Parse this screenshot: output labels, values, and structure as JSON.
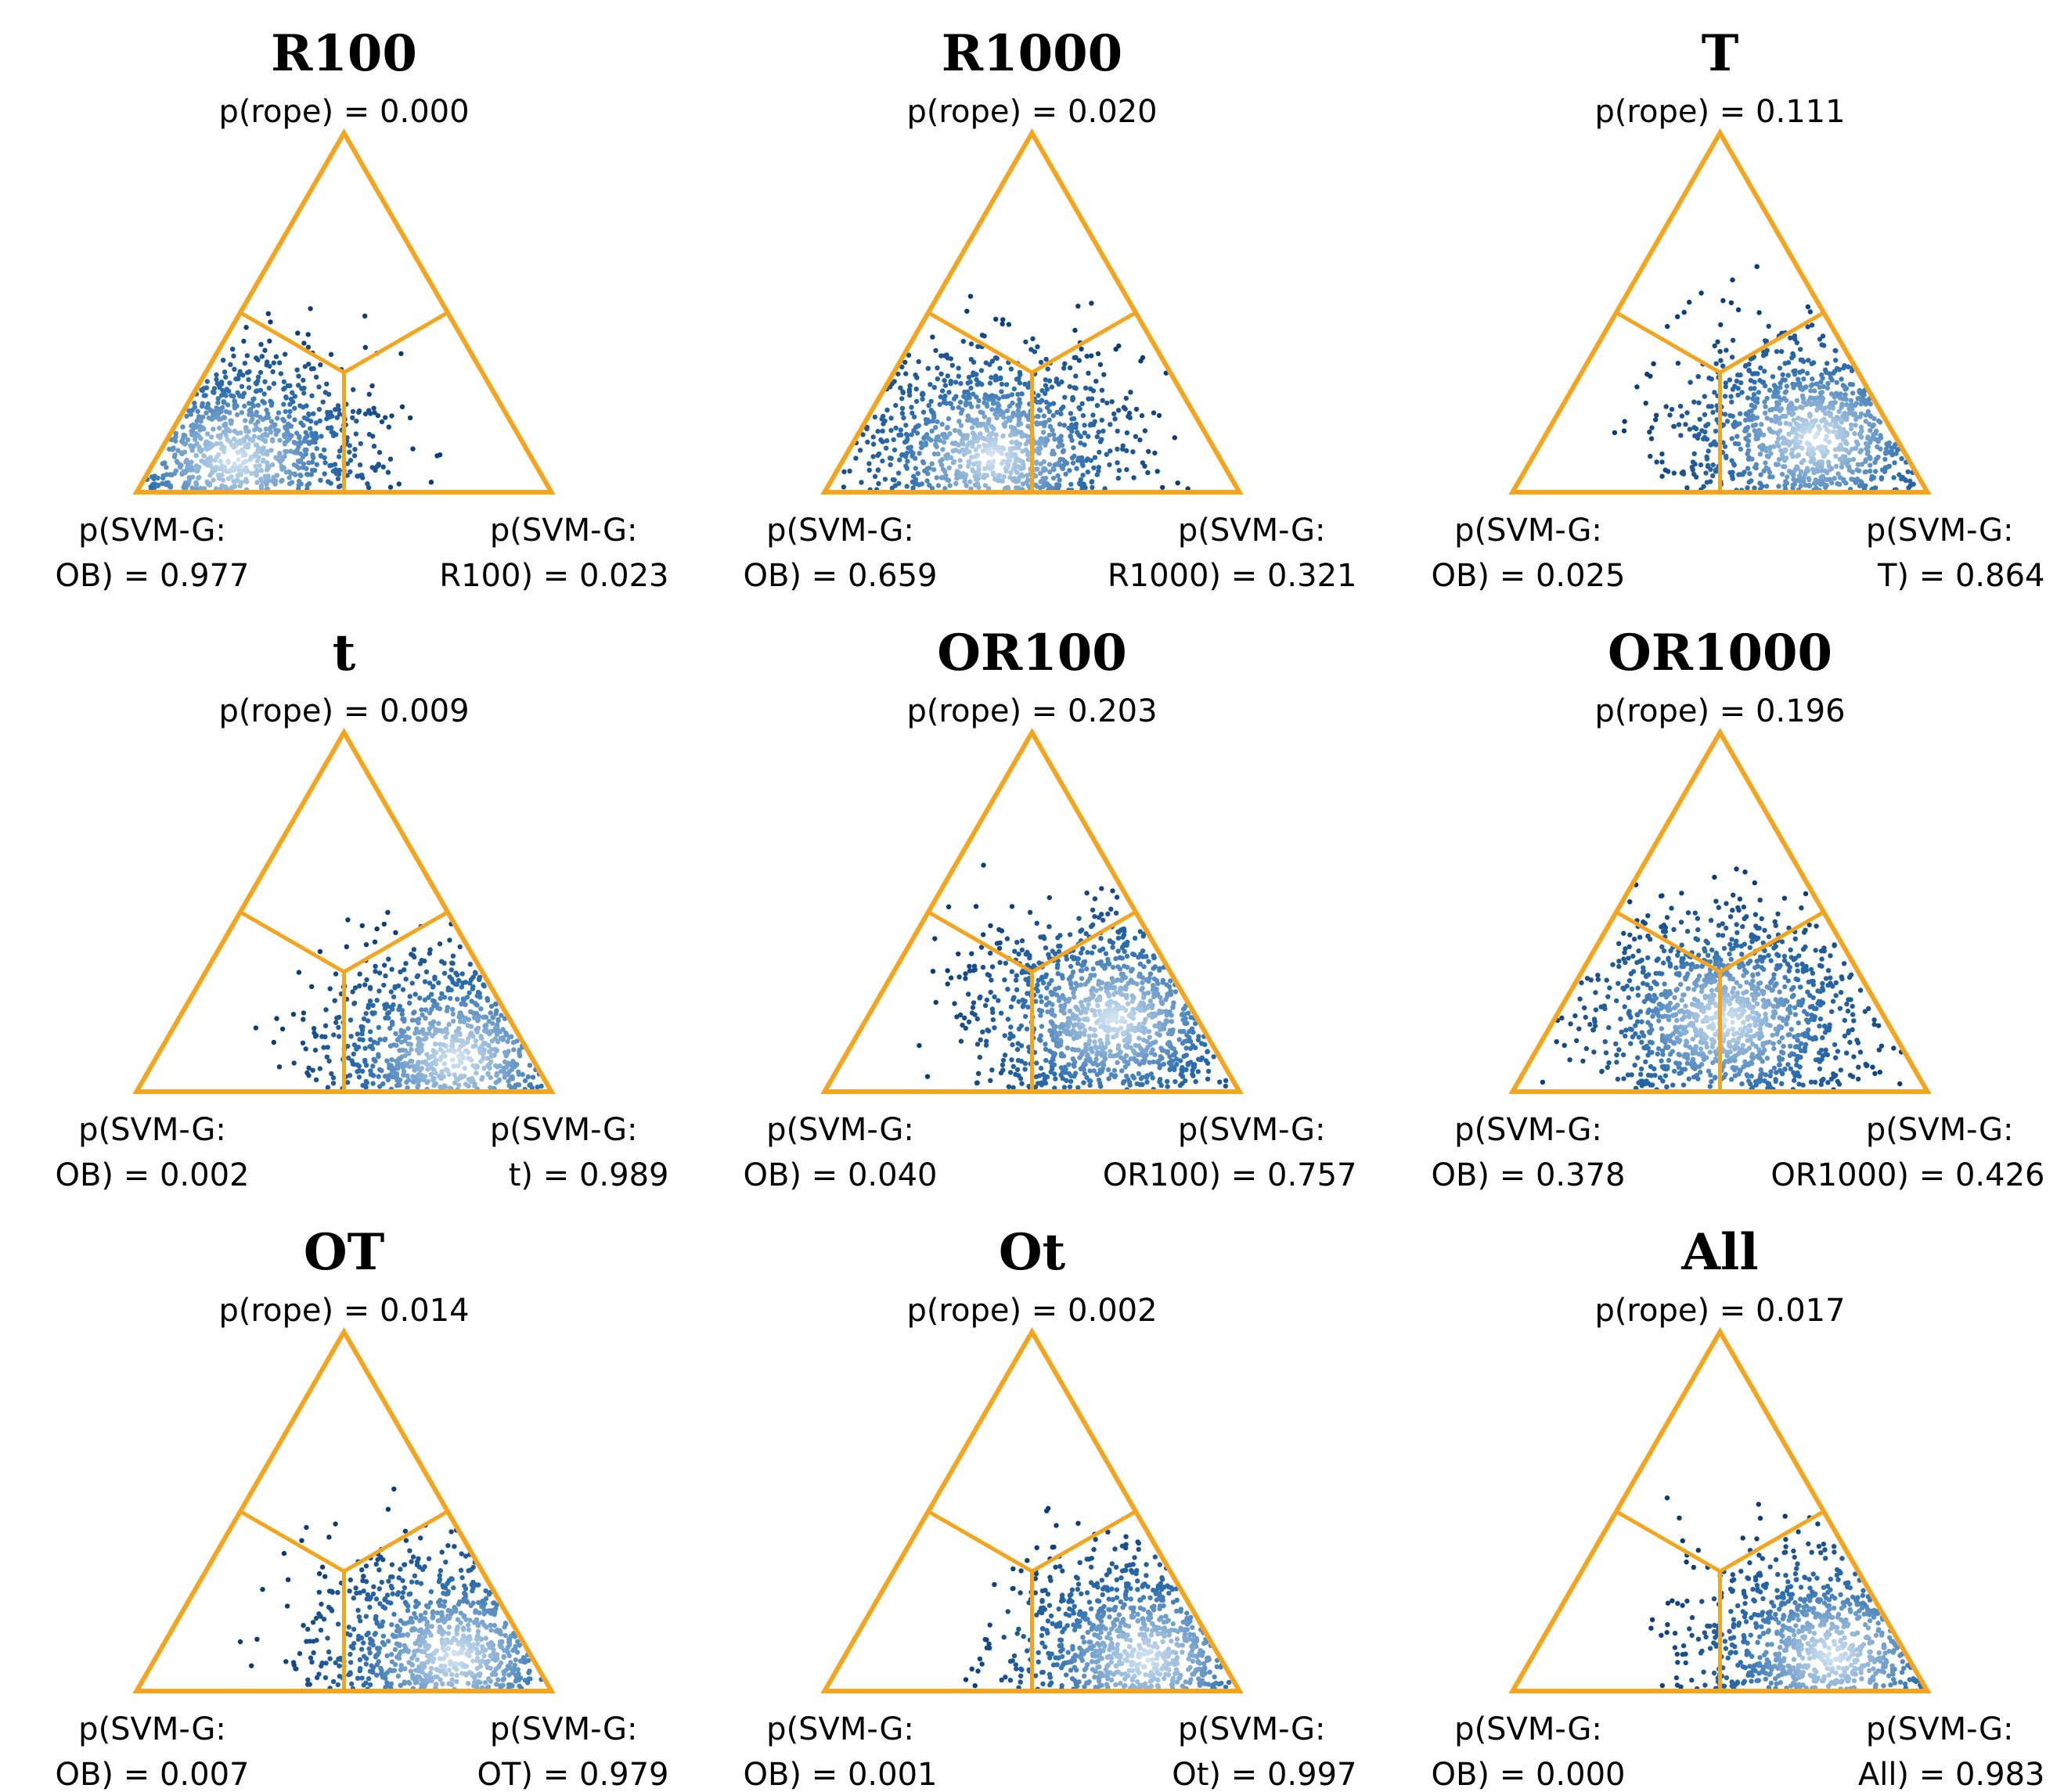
{
  "chart_data": [
    {
      "type": "ternary",
      "title": "R100",
      "top_label": "p(rope) = 0.000",
      "left_label": [
        "p(SVM-G:",
        "OB) = 0.977"
      ],
      "right_label": [
        "p(SVM-G:",
        "R100) = 0.023"
      ],
      "p_rope": 0.0,
      "p_left": 0.977,
      "p_right": 0.023
    },
    {
      "type": "ternary",
      "title": "R1000",
      "top_label": "p(rope) = 0.020",
      "left_label": [
        "p(SVM-G:",
        "OB) = 0.659"
      ],
      "right_label": [
        "p(SVM-G:",
        "R1000) = 0.321"
      ],
      "p_rope": 0.02,
      "p_left": 0.659,
      "p_right": 0.321
    },
    {
      "type": "ternary",
      "title": "T",
      "top_label": "p(rope) = 0.111",
      "left_label": [
        "p(SVM-G:",
        "OB) = 0.025"
      ],
      "right_label": [
        "p(SVM-G:",
        "T) = 0.864"
      ],
      "p_rope": 0.111,
      "p_left": 0.025,
      "p_right": 0.864
    },
    {
      "type": "ternary",
      "title": "t",
      "top_label": "p(rope) = 0.009",
      "left_label": [
        "p(SVM-G:",
        "OB) = 0.002"
      ],
      "right_label": [
        "p(SVM-G:",
        "t) = 0.989"
      ],
      "p_rope": 0.009,
      "p_left": 0.002,
      "p_right": 0.989
    },
    {
      "type": "ternary",
      "title": "OR100",
      "top_label": "p(rope) = 0.203",
      "left_label": [
        "p(SVM-G:",
        "OB) = 0.040"
      ],
      "right_label": [
        "p(SVM-G:",
        "OR100) = 0.757"
      ],
      "p_rope": 0.203,
      "p_left": 0.04,
      "p_right": 0.757
    },
    {
      "type": "ternary",
      "title": "OR1000",
      "top_label": "p(rope) = 0.196",
      "left_label": [
        "p(SVM-G:",
        "OB) = 0.378"
      ],
      "right_label": [
        "p(SVM-G:",
        "OR1000) = 0.426"
      ],
      "p_rope": 0.196,
      "p_left": 0.378,
      "p_right": 0.426
    },
    {
      "type": "ternary",
      "title": "OT",
      "top_label": "p(rope) = 0.014",
      "left_label": [
        "p(SVM-G:",
        "OB) = 0.007"
      ],
      "right_label": [
        "p(SVM-G:",
        "OT) = 0.979"
      ],
      "p_rope": 0.014,
      "p_left": 0.007,
      "p_right": 0.979
    },
    {
      "type": "ternary",
      "title": "Ot",
      "top_label": "p(rope) = 0.002",
      "left_label": [
        "p(SVM-G:",
        "OB) = 0.001"
      ],
      "right_label": [
        "p(SVM-G:",
        "Ot) = 0.997"
      ],
      "p_rope": 0.002,
      "p_left": 0.001,
      "p_right": 0.997
    },
    {
      "type": "ternary",
      "title": "All",
      "top_label": "p(rope) = 0.017",
      "left_label": [
        "p(SVM-G:",
        "OB) = 0.000"
      ],
      "right_label": [
        "p(SVM-G:",
        "All) = 0.983"
      ],
      "p_rope": 0.017,
      "p_left": 0.0,
      "p_right": 0.983
    }
  ],
  "colors": {
    "triangle": "#f5a41e",
    "point_dark": "#0b3b78",
    "point_mid": "#2e6fb0",
    "point_light": "#d8e8f5"
  }
}
